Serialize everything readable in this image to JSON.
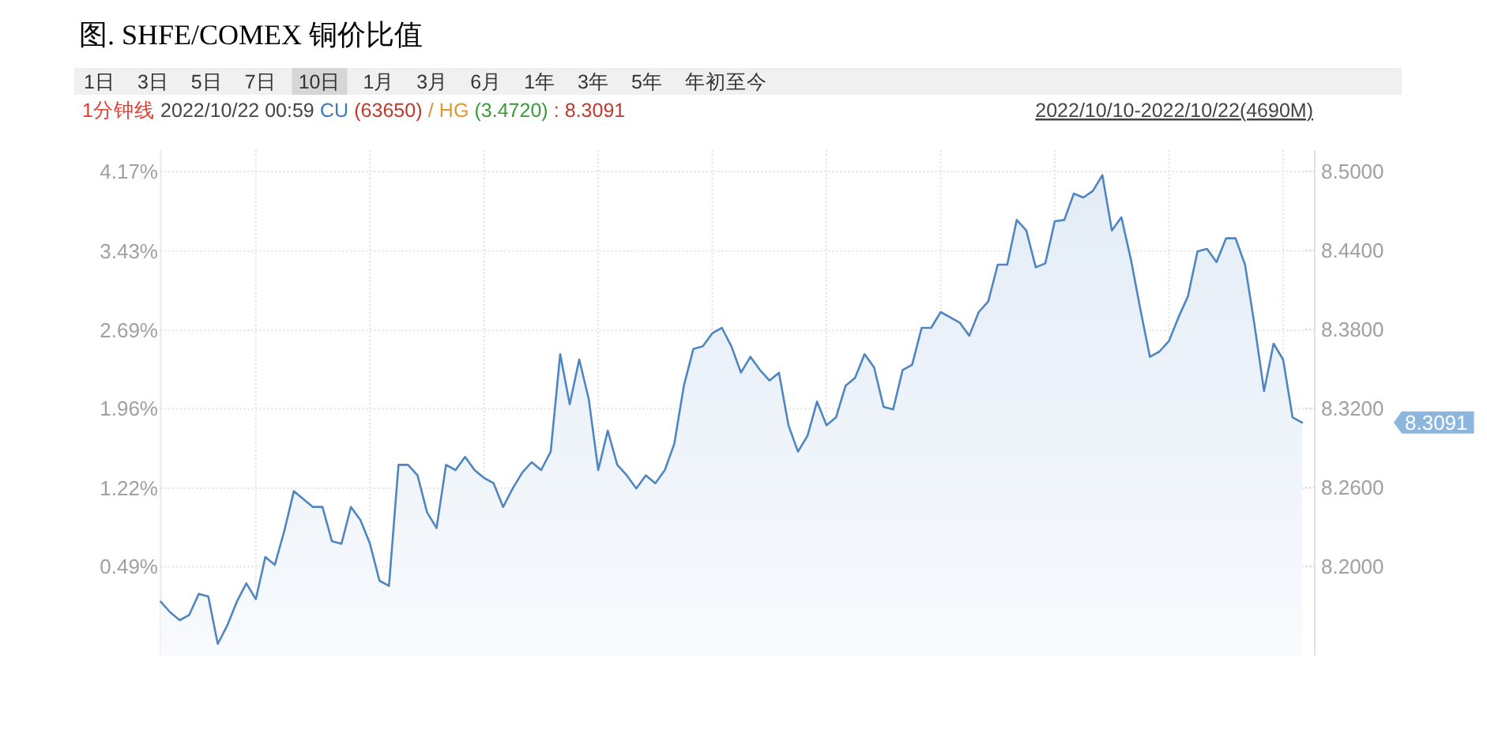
{
  "chart_data": {
    "type": "area",
    "title": "图. SHFE/COMEX 铜价比值",
    "categories": [
      null,
      null,
      null,
      null,
      null,
      null,
      null,
      null,
      null,
      null,
      null,
      null,
      null,
      null,
      null,
      null,
      null,
      null,
      null,
      null,
      null,
      null,
      null,
      null,
      null,
      null,
      null,
      null,
      null,
      null,
      null,
      null,
      null,
      null,
      null,
      null,
      null,
      null,
      null,
      null,
      null,
      null,
      null,
      null,
      null,
      null,
      null,
      null,
      null,
      null,
      null,
      null,
      null,
      null,
      null,
      null,
      null,
      null,
      null,
      null,
      null,
      null,
      null,
      null,
      null,
      null,
      null,
      null,
      null,
      null,
      null,
      null,
      null,
      null,
      null,
      null,
      null,
      null,
      null,
      null,
      null,
      null,
      null,
      null,
      null,
      null,
      null,
      null,
      null,
      null,
      null,
      null,
      null,
      null,
      null,
      null,
      null,
      null,
      null,
      null,
      null,
      null,
      null,
      null,
      null,
      null,
      null,
      null,
      null,
      null,
      null,
      null,
      null,
      null,
      null,
      null,
      null,
      null,
      null,
      null,
      null
    ],
    "series": [
      {
        "color": "#4f86c0",
        "axis": "y2",
        "values": [
          8.173,
          8.165,
          8.159,
          8.163,
          8.179,
          8.177,
          8.141,
          8.155,
          8.173,
          8.187,
          8.175,
          8.207,
          8.201,
          8.227,
          8.257,
          8.251,
          8.245,
          8.245,
          8.219,
          8.217,
          8.245,
          8.235,
          8.217,
          8.189,
          8.185,
          8.277,
          8.277,
          8.269,
          8.241,
          8.229,
          8.277,
          8.273,
          8.283,
          8.273,
          8.267,
          8.263,
          8.245,
          8.259,
          8.271,
          8.279,
          8.273,
          8.287,
          8.361,
          8.323,
          8.357,
          8.327,
          8.273,
          8.303,
          8.277,
          8.269,
          8.259,
          8.269,
          8.263,
          8.273,
          8.293,
          8.337,
          8.365,
          8.367,
          8.377,
          8.381,
          8.367,
          8.347,
          8.359,
          8.349,
          8.341,
          8.347,
          8.307,
          8.287,
          8.299,
          8.325,
          8.307,
          8.313,
          8.337,
          8.343,
          8.361,
          8.351,
          8.321,
          8.319,
          8.349,
          8.353,
          8.381,
          8.381,
          8.393,
          8.389,
          8.385,
          8.375,
          8.393,
          8.401,
          8.429,
          8.429,
          8.463,
          8.455,
          8.427,
          8.43,
          8.462,
          8.463,
          8.483,
          8.48,
          8.485,
          8.497,
          8.455,
          8.465,
          8.433,
          8.395,
          8.359,
          8.363,
          8.371,
          8.389,
          8.405,
          8.439,
          8.441,
          8.431,
          8.449,
          8.449,
          8.429,
          8.383,
          8.333,
          8.369,
          8.357,
          8.313,
          8.3091
        ]
      }
    ],
    "ylim": [
      -0.34,
      4.37
    ],
    "yticks": [
      {
        "value": 0.49,
        "label": "0.49%"
      },
      {
        "value": 1.22,
        "label": "1.22%"
      },
      {
        "value": 1.96,
        "label": "1.96%"
      },
      {
        "value": 2.69,
        "label": "2.69%"
      },
      {
        "value": 3.43,
        "label": "3.43%"
      },
      {
        "value": 4.17,
        "label": "4.17%"
      }
    ],
    "y2lim": [
      8.132,
      8.516
    ],
    "y2ticks": [
      {
        "value": 8.2,
        "label": "8.2000"
      },
      {
        "value": 8.26,
        "label": "8.2600"
      },
      {
        "value": 8.32,
        "label": "8.3200"
      },
      {
        "value": 8.38,
        "label": "8.3800"
      },
      {
        "value": 8.44,
        "label": "8.4400"
      },
      {
        "value": 8.5,
        "label": "8.5000"
      }
    ],
    "grid": true,
    "annotations": [
      "1日",
      "3日",
      "5日",
      "7日",
      "10日",
      "1月",
      "3月",
      "6月",
      "1年",
      "3年",
      "5年",
      "年初至今",
      "1分钟线",
      "2022/10/22 00:59",
      "CU",
      "(63650)",
      "/",
      "HG",
      "(3.4720)",
      ": 8.3091",
      "2022/10/10-2022/10/22(4690M)",
      "8.3091"
    ]
  }
}
